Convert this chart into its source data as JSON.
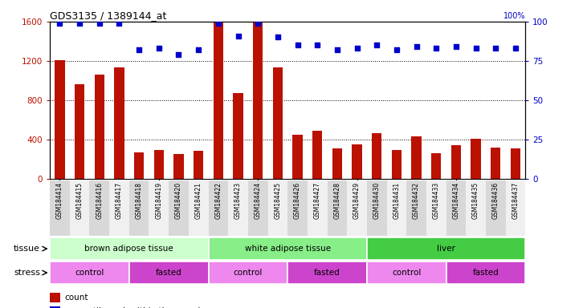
{
  "title": "GDS3135 / 1389144_at",
  "samples": [
    "GSM184414",
    "GSM184415",
    "GSM184416",
    "GSM184417",
    "GSM184418",
    "GSM184419",
    "GSM184420",
    "GSM184421",
    "GSM184422",
    "GSM184423",
    "GSM184424",
    "GSM184425",
    "GSM184426",
    "GSM184427",
    "GSM184428",
    "GSM184429",
    "GSM184430",
    "GSM184431",
    "GSM184432",
    "GSM184433",
    "GSM184434",
    "GSM184435",
    "GSM184436",
    "GSM184437"
  ],
  "counts": [
    1210,
    960,
    1060,
    1130,
    270,
    290,
    250,
    280,
    1590,
    870,
    1590,
    1130,
    450,
    490,
    310,
    350,
    460,
    290,
    430,
    260,
    340,
    410,
    320,
    310
  ],
  "percentile": [
    99,
    99,
    99,
    99,
    82,
    83,
    79,
    82,
    99,
    91,
    99,
    90,
    85,
    85,
    82,
    83,
    85,
    82,
    84,
    83,
    84,
    83,
    83,
    83
  ],
  "ylim_left": [
    0,
    1600
  ],
  "ylim_right": [
    0,
    100
  ],
  "yticks_left": [
    0,
    400,
    800,
    1200,
    1600
  ],
  "yticks_right": [
    0,
    25,
    50,
    75,
    100
  ],
  "bar_color": "#bb1100",
  "dot_color": "#0000cc",
  "tissue_groups": [
    {
      "label": "brown adipose tissue",
      "start": 0,
      "end": 7,
      "color": "#ccffcc"
    },
    {
      "label": "white adipose tissue",
      "start": 8,
      "end": 15,
      "color": "#88ee88"
    },
    {
      "label": "liver",
      "start": 16,
      "end": 23,
      "color": "#44cc44"
    }
  ],
  "stress_groups": [
    {
      "label": "control",
      "start": 0,
      "end": 3,
      "color": "#ee88ee"
    },
    {
      "label": "fasted",
      "start": 4,
      "end": 7,
      "color": "#cc44cc"
    },
    {
      "label": "control",
      "start": 8,
      "end": 11,
      "color": "#ee88ee"
    },
    {
      "label": "fasted",
      "start": 12,
      "end": 15,
      "color": "#cc44cc"
    },
    {
      "label": "control",
      "start": 16,
      "end": 19,
      "color": "#ee88ee"
    },
    {
      "label": "fasted",
      "start": 20,
      "end": 23,
      "color": "#cc44cc"
    }
  ],
  "legend_count_color": "#bb1100",
  "legend_pct_color": "#0000cc",
  "tissue_label": "tissue",
  "stress_label": "stress",
  "xticklabel_bg_even": "#d8d8d8",
  "xticklabel_bg_odd": "#f0f0f0"
}
